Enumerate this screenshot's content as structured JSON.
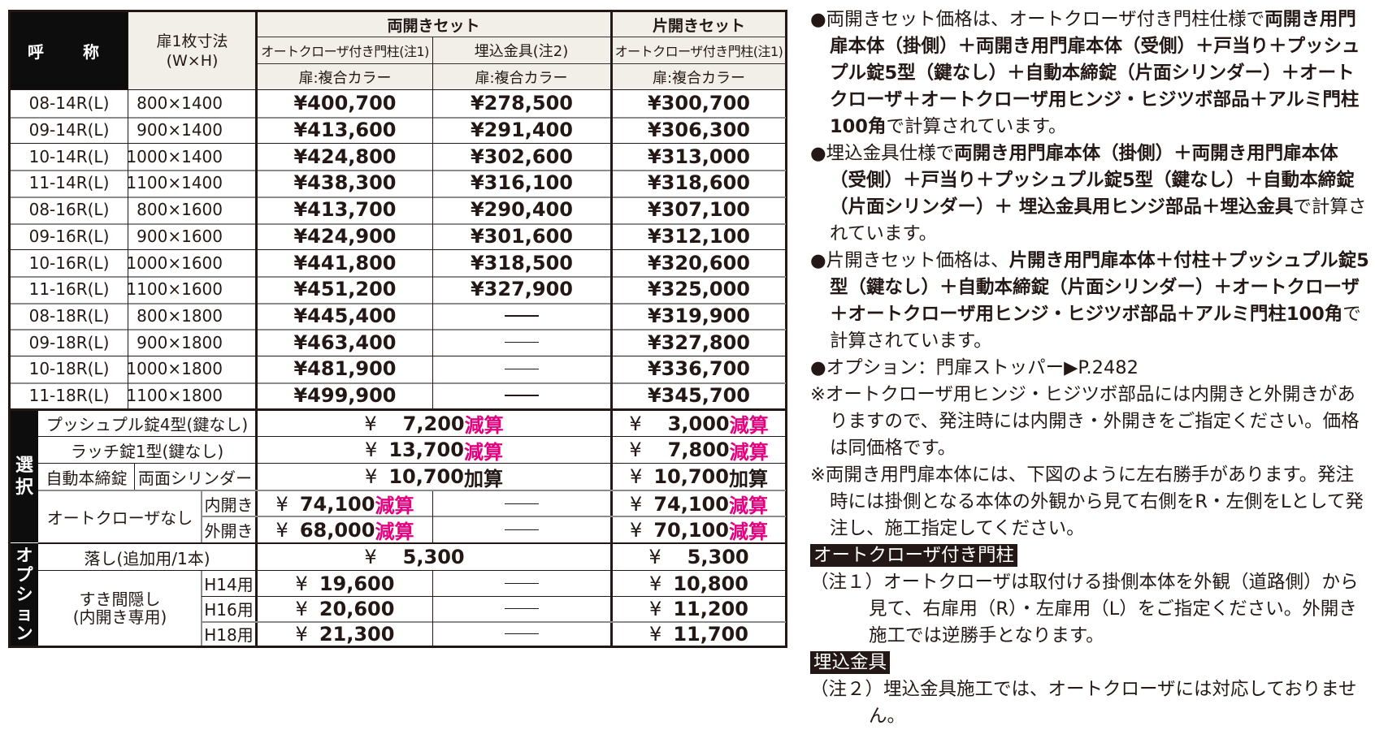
{
  "table": {
    "header": {
      "name_col": "呼　称",
      "size_col_line1": "扉1枚寸法",
      "size_col_line2": "(W×H)",
      "double_set": "両開きセット",
      "single_set": "片開きセット",
      "sub_auto_closer_double": "オートクローザ付き門柱(注1)",
      "sub_embedded": "埋込金具(注2)",
      "sub_auto_closer_single": "オートクローザ付き門柱(注1)",
      "color_1": "扉:複合カラー",
      "color_2": "扉:複合カラー",
      "color_3": "扉:複合カラー"
    },
    "rows": [
      {
        "model": "08-14R(L)",
        "size": "800×1400",
        "double_auto": "¥400,700",
        "double_embedded": "¥278,500",
        "single_auto": "¥300,700"
      },
      {
        "model": "09-14R(L)",
        "size": "900×1400",
        "double_auto": "¥413,600",
        "double_embedded": "¥291,400",
        "single_auto": "¥306,300"
      },
      {
        "model": "10-14R(L)",
        "size": "1000×1400",
        "double_auto": "¥424,800",
        "double_embedded": "¥302,600",
        "single_auto": "¥313,000"
      },
      {
        "model": "11-14R(L)",
        "size": "1100×1400",
        "double_auto": "¥438,300",
        "double_embedded": "¥316,100",
        "single_auto": "¥318,600"
      },
      {
        "model": "08-16R(L)",
        "size": "800×1600",
        "double_auto": "¥413,700",
        "double_embedded": "¥290,400",
        "single_auto": "¥307,100"
      },
      {
        "model": "09-16R(L)",
        "size": "900×1600",
        "double_auto": "¥424,900",
        "double_embedded": "¥301,600",
        "single_auto": "¥312,100"
      },
      {
        "model": "10-16R(L)",
        "size": "1000×1600",
        "double_auto": "¥441,800",
        "double_embedded": "¥318,500",
        "single_auto": "¥320,600"
      },
      {
        "model": "11-16R(L)",
        "size": "1100×1600",
        "double_auto": "¥451,200",
        "double_embedded": "¥327,900",
        "single_auto": "¥325,000"
      },
      {
        "model": "08-18R(L)",
        "size": "800×1800",
        "double_auto": "¥445,400",
        "double_embedded": "—",
        "single_auto": "¥319,900"
      },
      {
        "model": "09-18R(L)",
        "size": "900×1800",
        "double_auto": "¥463,400",
        "double_embedded": "—",
        "single_auto": "¥327,800"
      },
      {
        "model": "10-18R(L)",
        "size": "1000×1800",
        "double_auto": "¥481,900",
        "double_embedded": "—",
        "single_auto": "¥336,700"
      },
      {
        "model": "11-18R(L)",
        "size": "1100×1800",
        "double_auto": "¥499,900",
        "double_embedded": "—",
        "single_auto": "¥345,700"
      }
    ],
    "selection": {
      "side_label_1": "選",
      "side_label_2": "択",
      "push_pull": {
        "label": "プッシュプル錠4型(鍵なし)",
        "double_yen": "¥",
        "double_amount": "7,200",
        "double_suffix": "減算",
        "single_yen": "¥",
        "single_amount": "3,000",
        "single_suffix": "減算"
      },
      "latch": {
        "label": "ラッチ錠1型(鍵なし)",
        "double_yen": "¥",
        "double_amount": "13,700",
        "double_suffix": "減算",
        "single_yen": "¥",
        "single_amount": "7,800",
        "single_suffix": "減算"
      },
      "auto_lock": {
        "label_left": "自動本締錠",
        "label_right": "両面シリンダー",
        "double_yen": "¥",
        "double_amount": "10,700",
        "double_suffix": "加算",
        "single_yen": "¥",
        "single_amount": "10,700",
        "single_suffix": "加算"
      },
      "no_closer": {
        "label": "オートクローザなし",
        "inward": {
          "label": "内開き",
          "double_yen": "¥",
          "double_amount": "74,100",
          "double_suffix": "減算",
          "embedded": "—",
          "single_yen": "¥",
          "single_amount": "74,100",
          "single_suffix": "減算"
        },
        "outward": {
          "label": "外開き",
          "double_yen": "¥",
          "double_amount": "68,000",
          "double_suffix": "減算",
          "embedded": "—",
          "single_yen": "¥",
          "single_amount": "70,100",
          "single_suffix": "減算"
        }
      }
    },
    "options": {
      "side_label": [
        "オ",
        "プ",
        "シ",
        "ョ",
        "ン"
      ],
      "drop_rod": {
        "label": "落し(追加用/1本)",
        "double_yen": "¥",
        "double_amount": "5,300",
        "single_yen": "¥",
        "single_amount": "5,300"
      },
      "gap_cover": {
        "label_line1": "すき間隠し",
        "label_line2": "(内開き専用)",
        "rows": [
          {
            "label": "H14用",
            "double_yen": "¥",
            "double_amount": "19,600",
            "embedded": "—",
            "single_yen": "¥",
            "single_amount": "10,800"
          },
          {
            "label": "H16用",
            "double_yen": "¥",
            "double_amount": "20,600",
            "embedded": "—",
            "single_yen": "¥",
            "single_amount": "11,200"
          },
          {
            "label": "H18用",
            "double_yen": "¥",
            "double_amount": "21,300",
            "embedded": "—",
            "single_yen": "¥",
            "single_amount": "11,700"
          }
        ]
      }
    }
  },
  "notes": {
    "n1_light": "●両開きセット価格は、オートクローザ付き門柱仕様で",
    "n1_bold": "両開き用門扉本体（掛側）＋両開き用門扉本体（受側）＋戸当り＋プッシュプル錠5型（鍵なし）＋自動本締錠（片面シリンダー）＋オートクローザ＋オートクローザ用ヒンジ・ヒジツボ部品＋アルミ門柱100角",
    "n1_end": "で計算されています。",
    "n2_light": "●埋込金具仕様で",
    "n2_bold": "両開き用門扉本体（掛側）＋両開き用門扉本体（受側）＋戸当り＋プッシュプル錠5型（鍵なし）＋自動本締錠（片面シリンダー）＋ 埋込金具用ヒンジ部品＋埋込金具",
    "n2_end": "で計算されています。",
    "n3_light": "●片開きセット価格は、",
    "n3_bold": "片開き用門扉本体＋付柱＋プッシュプル錠5型（鍵なし）＋自動本締錠（片面シリンダー）＋オートクローザ＋オートクローザ用ヒンジ・ヒジツボ部品＋アルミ門柱100角",
    "n3_end": "で計算されています。",
    "n4": "●オプション：門扉ストッパー▶P.2482",
    "n5": "※オートクローザ用ヒンジ・ヒジツボ部品には内開きと外開きがありますので、発注時には内開き・外開きをご指定ください。価格は同価格です。",
    "n6": "※両開き用門扉本体には、下図のように左右勝手があります。発注時には掛側となる本体の外観から見て右側をR・左側をLとして発注し、施工指定してください。",
    "tag1": "オートクローザ付き門柱",
    "fn1": "（注１）オートクローザは取付ける掛側本体を外観（道路側）から見て、右扉用（R）・左扉用（L）をご指定ください。外開き施工では逆勝手となります。",
    "tag2": "埋込金具",
    "fn2": "（注２）埋込金具施工では、オートクローザには対応しておりません。"
  }
}
